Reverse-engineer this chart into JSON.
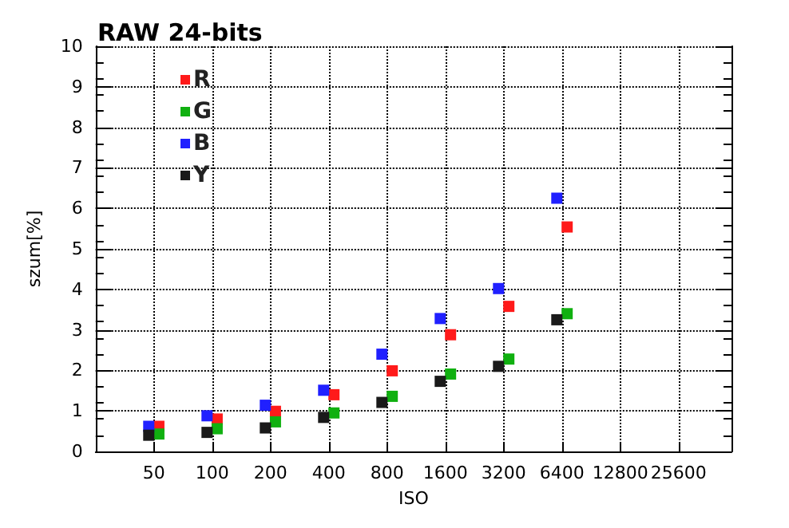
{
  "chart_data": {
    "type": "scatter",
    "title": "RAW 24-bits",
    "xlabel": "ISO",
    "ylabel": "szum[%]",
    "log": "x",
    "xlim": [
      25,
      48000
    ],
    "xticks": [
      50,
      100,
      200,
      400,
      800,
      1600,
      3200,
      6400,
      12800,
      25600
    ],
    "ylim": [
      0,
      10
    ],
    "yticks": [
      0,
      1,
      2,
      3,
      4,
      5,
      6,
      7,
      8,
      9,
      10
    ],
    "grid": true,
    "legend": "top left",
    "marker": "square",
    "series": [
      {
        "name": "R",
        "color": "#ff1a1a",
        "x": [
          53,
          106,
          212,
          425,
          850,
          1700,
          3400,
          6800
        ],
        "values": [
          0.62,
          0.8,
          0.99,
          1.4,
          1.99,
          2.88,
          3.58,
          5.54
        ]
      },
      {
        "name": "G",
        "color": "#10b010",
        "x": [
          53,
          106,
          212,
          425,
          850,
          1700,
          3400,
          6800
        ],
        "values": [
          0.43,
          0.56,
          0.73,
          0.95,
          1.36,
          1.91,
          2.28,
          3.4
        ]
      },
      {
        "name": "B",
        "color": "#2020ff",
        "x": [
          47,
          94,
          188,
          376,
          752,
          1504,
          3008,
          6016
        ],
        "values": [
          0.62,
          0.88,
          1.14,
          1.51,
          2.4,
          3.28,
          4.02,
          6.25
        ]
      },
      {
        "name": "Y",
        "color": "#1a1a1a",
        "x": [
          47,
          94,
          188,
          376,
          752,
          1504,
          3008,
          6016
        ],
        "values": [
          0.4,
          0.47,
          0.58,
          0.84,
          1.21,
          1.73,
          2.1,
          3.25
        ]
      }
    ]
  }
}
